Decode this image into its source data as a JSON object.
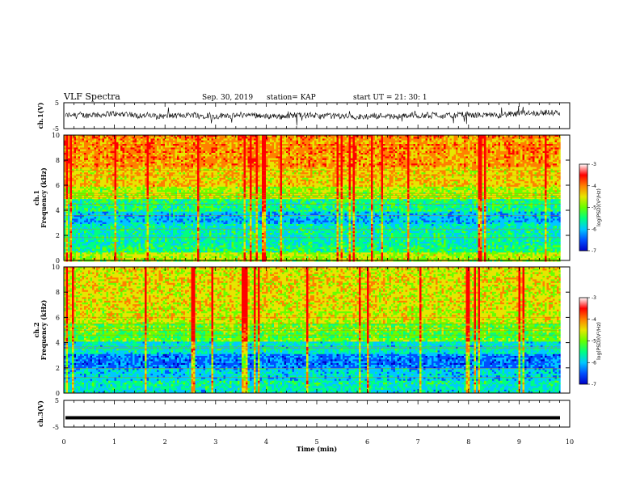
{
  "header": {
    "title": "VLF Spectra",
    "date": "Sep. 30, 2019",
    "station": "station= KAP",
    "start": "start  UT =  21: 30: 1"
  },
  "colors": {
    "spectrum": [
      "#0000c8",
      "#0050ff",
      "#00c8ff",
      "#00ff80",
      "#66ff00",
      "#e6e600",
      "#ff8000",
      "#ff0000",
      "#ffffff"
    ]
  },
  "chart_data": [
    {
      "type": "line",
      "name": "ch1-waveform",
      "ylabel": "ch.1(V)",
      "ylim": [
        -5,
        5
      ],
      "yticks": [
        "5",
        "-5"
      ],
      "xlim": [
        0,
        10
      ],
      "description_values": "noisy waveform roughly between -2.5 V and 2 V"
    },
    {
      "type": "heatmap",
      "name": "ch1-spectrogram",
      "ylabel": "ch.1\nFrequency (kHz)",
      "ylabel_top": "ch.1",
      "ylabel_bottom": "Frequency (kHz)",
      "ylim": [
        0,
        10
      ],
      "yticks": [
        "0",
        "2",
        "4",
        "6",
        "8",
        "10"
      ],
      "xlim": [
        0,
        10
      ],
      "data_extent_min": 9.82,
      "band_levels": [
        {
          "from": 0,
          "to": 0.7,
          "level": 0.62
        },
        {
          "from": 0.7,
          "to": 1.2,
          "level": 0.45
        },
        {
          "from": 1.2,
          "to": 2.2,
          "level": 0.42
        },
        {
          "from": 2.2,
          "to": 3.0,
          "level": 0.38
        },
        {
          "from": 3.0,
          "to": 4.0,
          "level": 0.3
        },
        {
          "from": 4.0,
          "to": 5.0,
          "level": 0.45
        },
        {
          "from": 5.0,
          "to": 6.0,
          "level": 0.62
        },
        {
          "from": 6.0,
          "to": 7.5,
          "level": 0.72
        },
        {
          "from": 7.5,
          "to": 10.0,
          "level": 0.8
        }
      ],
      "colorbar": {
        "label": "log(PSD)(V²/Hz)",
        "range": [
          -7,
          -3
        ],
        "ticks": [
          "-3",
          "-4",
          "-5",
          "-6",
          "-7"
        ]
      }
    },
    {
      "type": "heatmap",
      "name": "ch2-spectrogram",
      "ylabel": "ch.2\nFrequency (kHz)",
      "ylabel_top": "ch.2",
      "ylabel_bottom": "Frequency (kHz)",
      "ylim": [
        0,
        10
      ],
      "yticks": [
        "0",
        "2",
        "4",
        "6",
        "8",
        "10"
      ],
      "xlim": [
        0,
        10
      ],
      "data_extent_min": 9.82,
      "band_levels": [
        {
          "from": 0,
          "to": 1.0,
          "level": 0.4
        },
        {
          "from": 1.0,
          "to": 2.0,
          "level": 0.32
        },
        {
          "from": 2.0,
          "to": 3.2,
          "level": 0.22
        },
        {
          "from": 3.2,
          "to": 4.2,
          "level": 0.38
        },
        {
          "from": 4.2,
          "to": 5.5,
          "level": 0.55
        },
        {
          "from": 5.5,
          "to": 7.0,
          "level": 0.66
        },
        {
          "from": 7.0,
          "to": 10.0,
          "level": 0.7
        }
      ],
      "colorbar": {
        "label": "log(PSD)(V²/Hz)",
        "range": [
          -7,
          -3
        ],
        "ticks": [
          "-3",
          "-4",
          "-5",
          "-6",
          "-7"
        ]
      }
    },
    {
      "type": "line",
      "name": "ch3-waveform",
      "ylabel": "ch.3(V)",
      "ylim": [
        -5,
        5
      ],
      "yticks": [
        "5",
        "-5"
      ],
      "xlim": [
        0,
        10
      ],
      "constant_value": -1.5
    }
  ],
  "xaxis": {
    "label": "Time (min)",
    "ticks": [
      "0",
      "1",
      "2",
      "3",
      "4",
      "5",
      "6",
      "7",
      "8",
      "9",
      "10"
    ]
  }
}
